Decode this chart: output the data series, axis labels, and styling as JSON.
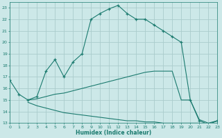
{
  "xlabel": "Humidex (Indice chaleur)",
  "bg_color": "#cce8e8",
  "grid_color": "#aacccc",
  "line_color": "#1a7a6e",
  "x_main": [
    0,
    1,
    2,
    3,
    4,
    5,
    6,
    7,
    8,
    9,
    10,
    11,
    12,
    13,
    14,
    15,
    16,
    17,
    18,
    19,
    20,
    21,
    22,
    23
  ],
  "y_main": [
    16.7,
    15.5,
    15.0,
    15.3,
    17.5,
    18.5,
    17.0,
    18.3,
    19.0,
    22.0,
    22.5,
    22.9,
    23.2,
    22.5,
    22.0,
    22.0,
    21.5,
    21.0,
    20.5,
    20.0,
    15.0,
    13.2,
    12.9,
    13.2
  ],
  "x_upper": [
    2,
    3,
    4,
    5,
    6,
    7,
    8,
    9,
    10,
    11,
    12,
    13,
    14,
    15,
    16,
    17,
    18,
    19,
    20,
    21,
    22,
    23
  ],
  "y_upper": [
    15.0,
    15.1,
    15.3,
    15.5,
    15.6,
    15.8,
    16.0,
    16.2,
    16.4,
    16.6,
    16.8,
    17.0,
    17.2,
    17.4,
    17.5,
    17.5,
    17.5,
    15.0,
    15.0,
    13.3,
    13.0,
    13.2
  ],
  "x_lower": [
    2,
    3,
    4,
    5,
    6,
    7,
    8,
    9,
    10,
    11,
    12,
    13,
    14,
    15,
    16,
    17,
    18,
    19,
    20,
    21,
    22,
    23
  ],
  "y_lower": [
    14.8,
    14.5,
    14.3,
    14.1,
    13.9,
    13.8,
    13.7,
    13.6,
    13.5,
    13.4,
    13.3,
    13.2,
    13.2,
    13.1,
    13.1,
    13.0,
    13.0,
    13.0,
    13.0,
    13.0,
    12.9,
    13.2
  ],
  "xlim": [
    0,
    23
  ],
  "ylim": [
    13,
    23.5
  ],
  "yticks": [
    13,
    14,
    15,
    16,
    17,
    18,
    19,
    20,
    21,
    22,
    23
  ],
  "xticks": [
    0,
    1,
    2,
    3,
    4,
    5,
    6,
    7,
    8,
    9,
    10,
    11,
    12,
    13,
    14,
    15,
    16,
    17,
    18,
    19,
    20,
    21,
    22,
    23
  ]
}
